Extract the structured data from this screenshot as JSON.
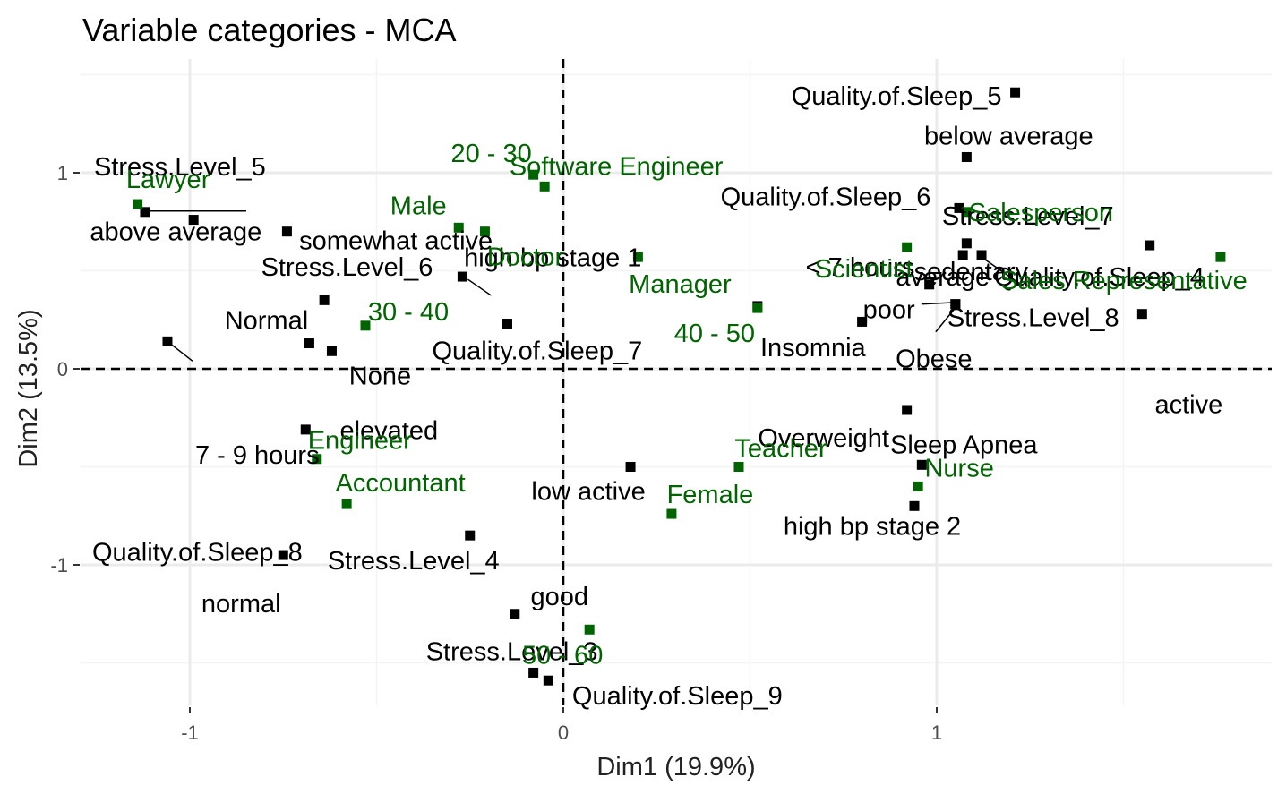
{
  "chart_data": {
    "type": "scatter",
    "title": "Variable categories - MCA",
    "xlabel": "Dim1 (19.9%)",
    "ylabel": "Dim2 (13.5%)",
    "xlim": [
      -1.3,
      1.9
    ],
    "ylim": [
      -1.52,
      1.56
    ],
    "xticks": [
      -1,
      0,
      1
    ],
    "yticks": [
      -1,
      0,
      1
    ],
    "grid": true,
    "reference_lines": [
      0,
      0
    ],
    "colors": {
      "active_variable": "#000000",
      "supplementary_variable": "#006400"
    },
    "points": [
      {
        "label": "Quality.of.Sleep_5",
        "x": 1.21,
        "y": 1.41,
        "group": "active"
      },
      {
        "label": "below average",
        "x": 1.08,
        "y": 1.08,
        "group": "active"
      },
      {
        "label": "sedentary",
        "x": 1.08,
        "y": 0.64,
        "group": "active"
      },
      {
        "label": "Quality.of.Sleep_6",
        "x": 1.06,
        "y": 0.82,
        "group": "active"
      },
      {
        "label": "Stress.Level_7",
        "x": 1.57,
        "y": 0.63,
        "group": "active"
      },
      {
        "label": "average",
        "x": 1.07,
        "y": 0.58,
        "group": "active"
      },
      {
        "label": "Quality.of.Sleep_4",
        "x": 1.12,
        "y": 0.58,
        "group": "active"
      },
      {
        "label": "< 7 hours",
        "x": 0.98,
        "y": 0.43,
        "group": "active"
      },
      {
        "label": "poor",
        "x": 0.8,
        "y": 0.24,
        "group": "active"
      },
      {
        "label": "Stress.Level_8",
        "x": 1.05,
        "y": 0.33,
        "group": "active"
      },
      {
        "label": "Obese",
        "x": 1.05,
        "y": 0.33,
        "group": "active"
      },
      {
        "label": "active",
        "x": 1.55,
        "y": 0.28,
        "group": "active"
      },
      {
        "label": "Insomnia",
        "x": 0.52,
        "y": 0.32,
        "group": "active"
      },
      {
        "label": "Overweight",
        "x": 0.92,
        "y": -0.21,
        "group": "active"
      },
      {
        "label": "Sleep Apnea",
        "x": 0.96,
        "y": -0.49,
        "group": "active"
      },
      {
        "label": "high bp stage 2",
        "x": 0.94,
        "y": -0.7,
        "group": "active"
      },
      {
        "label": "low active",
        "x": 0.18,
        "y": -0.5,
        "group": "active"
      },
      {
        "label": "Stress.Level_5",
        "x": -1.12,
        "y": 0.8,
        "group": "active"
      },
      {
        "label": "somewhat active",
        "x": -0.99,
        "y": 0.76,
        "group": "active"
      },
      {
        "label": "above average",
        "x": -0.74,
        "y": 0.7,
        "group": "active"
      },
      {
        "label": "Stress.Level_6",
        "x": -0.27,
        "y": 0.47,
        "group": "active"
      },
      {
        "label": "high bp stage 1",
        "x": -0.64,
        "y": 0.35,
        "group": "active"
      },
      {
        "label": "elevated",
        "x": -0.15,
        "y": 0.23,
        "group": "active"
      },
      {
        "label": "Normal",
        "x": -0.68,
        "y": 0.13,
        "group": "active"
      },
      {
        "label": "None",
        "x": -0.62,
        "y": 0.09,
        "group": "active"
      },
      {
        "label": "Quality.of.Sleep_8",
        "x": -1.06,
        "y": 0.14,
        "group": "active"
      },
      {
        "label": "Quality.of.Sleep_7",
        "x": -0.15,
        "y": 0.23,
        "group": "active"
      },
      {
        "label": "7 - 9 hours",
        "x": -0.69,
        "y": -0.31,
        "group": "active"
      },
      {
        "label": "Stress.Level_4",
        "x": -0.25,
        "y": -0.85,
        "group": "active"
      },
      {
        "label": "normal",
        "x": -0.75,
        "y": -0.95,
        "group": "active"
      },
      {
        "label": "good",
        "x": -0.13,
        "y": -1.25,
        "group": "active"
      },
      {
        "label": "Stress.Level_3",
        "x": -0.08,
        "y": -1.55,
        "group": "active"
      },
      {
        "label": "Quality.of.Sleep_9",
        "x": -0.04,
        "y": -1.59,
        "group": "active"
      },
      {
        "label": "Lawyer",
        "x": -1.14,
        "y": 0.84,
        "group": "supplementary"
      },
      {
        "label": "Male",
        "x": -0.28,
        "y": 0.72,
        "group": "supplementary"
      },
      {
        "label": "20 - 30",
        "x": -0.08,
        "y": 0.99,
        "group": "supplementary"
      },
      {
        "label": "Software Engineer",
        "x": -0.05,
        "y": 0.93,
        "group": "supplementary"
      },
      {
        "label": "Doctor",
        "x": -0.21,
        "y": 0.7,
        "group": "supplementary"
      },
      {
        "label": "Manager",
        "x": 0.2,
        "y": 0.57,
        "group": "supplementary"
      },
      {
        "label": "30 - 40",
        "x": -0.53,
        "y": 0.22,
        "group": "supplementary"
      },
      {
        "label": "40 - 50",
        "x": 0.52,
        "y": 0.31,
        "group": "supplementary"
      },
      {
        "label": "Salesperson",
        "x": 1.08,
        "y": 0.8,
        "group": "supplementary"
      },
      {
        "label": "Scientist",
        "x": 0.92,
        "y": 0.62,
        "group": "supplementary"
      },
      {
        "label": "Sales Representative",
        "x": 1.76,
        "y": 0.57,
        "group": "supplementary"
      },
      {
        "label": "Engineer",
        "x": -0.66,
        "y": -0.46,
        "group": "supplementary"
      },
      {
        "label": "Accountant",
        "x": -0.58,
        "y": -0.69,
        "group": "supplementary"
      },
      {
        "label": "Teacher",
        "x": 0.47,
        "y": -0.5,
        "group": "supplementary"
      },
      {
        "label": "Female",
        "x": 0.29,
        "y": -0.74,
        "group": "supplementary"
      },
      {
        "label": "Nurse",
        "x": 0.95,
        "y": -0.6,
        "group": "supplementary"
      },
      {
        "label": "50 - 60",
        "x": 0.07,
        "y": -1.33,
        "group": "supplementary"
      }
    ]
  }
}
